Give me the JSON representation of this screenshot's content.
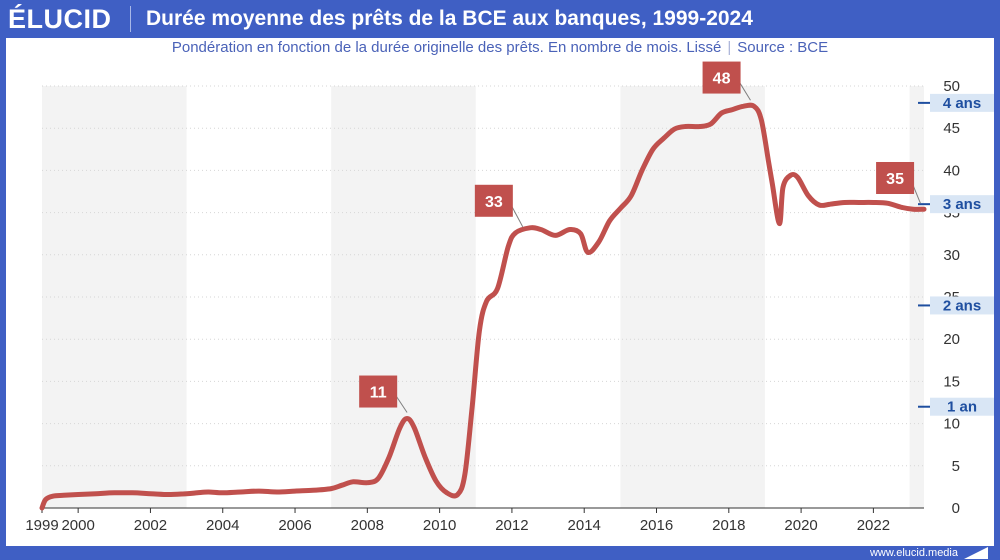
{
  "header": {
    "brand": "ÉLUCID",
    "title": "Durée moyenne des prêts de la BCE aux banques, 1999-2024"
  },
  "subtitle": {
    "text": "Pondération en fonction de la durée originelle des prêts. En nombre de mois. Lissé",
    "source": "Source : BCE"
  },
  "footer": {
    "site": "www.elucid.media"
  },
  "colors": {
    "frame": "#3f5fc4",
    "line": "#c0504d",
    "band": "#f3f3f3",
    "ans_label_bg": "#d9e6f5",
    "ans_label_text": "#1f4fa0"
  },
  "chart_data": {
    "type": "line",
    "title": "Durée moyenne des prêts de la BCE aux banques, 1999-2024",
    "xlabel": "",
    "ylabel": "",
    "xlim": [
      1999,
      2023.4
    ],
    "ylim": [
      0,
      50
    ],
    "x_ticks": [
      1999,
      2000,
      2002,
      2004,
      2006,
      2008,
      2010,
      2012,
      2014,
      2016,
      2018,
      2020,
      2022
    ],
    "y_ticks": [
      0,
      5,
      10,
      15,
      20,
      25,
      30,
      35,
      40,
      45,
      50
    ],
    "shaded_periods": [
      [
        1999,
        2003
      ],
      [
        2007,
        2011
      ],
      [
        2015,
        2019
      ],
      [
        2023,
        2023.4
      ]
    ],
    "series": [
      {
        "name": "Durée moyenne (mois)",
        "points": [
          [
            1999.0,
            0.0
          ],
          [
            1999.1,
            1.0
          ],
          [
            1999.3,
            1.4
          ],
          [
            1999.6,
            1.5
          ],
          [
            2000.0,
            1.6
          ],
          [
            2000.5,
            1.7
          ],
          [
            2001.0,
            1.8
          ],
          [
            2001.5,
            1.8
          ],
          [
            2002.0,
            1.7
          ],
          [
            2002.5,
            1.6
          ],
          [
            2003.0,
            1.7
          ],
          [
            2003.3,
            1.8
          ],
          [
            2003.6,
            1.9
          ],
          [
            2004.0,
            1.8
          ],
          [
            2004.5,
            1.9
          ],
          [
            2005.0,
            2.0
          ],
          [
            2005.5,
            1.9
          ],
          [
            2006.0,
            2.0
          ],
          [
            2006.5,
            2.1
          ],
          [
            2007.0,
            2.3
          ],
          [
            2007.3,
            2.7
          ],
          [
            2007.6,
            3.1
          ],
          [
            2008.0,
            3.0
          ],
          [
            2008.3,
            3.5
          ],
          [
            2008.6,
            6.0
          ],
          [
            2008.9,
            9.5
          ],
          [
            2009.1,
            10.6
          ],
          [
            2009.3,
            9.5
          ],
          [
            2009.6,
            6.0
          ],
          [
            2009.9,
            3.2
          ],
          [
            2010.2,
            1.8
          ],
          [
            2010.5,
            1.6
          ],
          [
            2010.7,
            4.0
          ],
          [
            2010.9,
            12.0
          ],
          [
            2011.1,
            21.0
          ],
          [
            2011.3,
            24.5
          ],
          [
            2011.6,
            26.0
          ],
          [
            2011.9,
            31.0
          ],
          [
            2012.1,
            32.6
          ],
          [
            2012.5,
            33.2
          ],
          [
            2012.8,
            33.0
          ],
          [
            2013.2,
            32.3
          ],
          [
            2013.6,
            33.0
          ],
          [
            2013.9,
            32.5
          ],
          [
            2014.1,
            30.3
          ],
          [
            2014.4,
            31.5
          ],
          [
            2014.7,
            34.0
          ],
          [
            2015.0,
            35.5
          ],
          [
            2015.3,
            37.0
          ],
          [
            2015.6,
            40.0
          ],
          [
            2015.9,
            42.5
          ],
          [
            2016.2,
            43.8
          ],
          [
            2016.5,
            44.9
          ],
          [
            2016.8,
            45.2
          ],
          [
            2017.2,
            45.2
          ],
          [
            2017.5,
            45.5
          ],
          [
            2017.8,
            46.8
          ],
          [
            2018.1,
            47.2
          ],
          [
            2018.4,
            47.6
          ],
          [
            2018.7,
            47.6
          ],
          [
            2018.9,
            46.0
          ],
          [
            2019.1,
            41.0
          ],
          [
            2019.2,
            38.5
          ],
          [
            2019.4,
            33.7
          ],
          [
            2019.5,
            38.0
          ],
          [
            2019.7,
            39.4
          ],
          [
            2019.9,
            39.2
          ],
          [
            2020.2,
            37.0
          ],
          [
            2020.5,
            35.9
          ],
          [
            2020.8,
            36.0
          ],
          [
            2021.2,
            36.2
          ],
          [
            2021.6,
            36.2
          ],
          [
            2022.0,
            36.2
          ],
          [
            2022.4,
            36.1
          ],
          [
            2022.8,
            35.6
          ],
          [
            2023.1,
            35.4
          ],
          [
            2023.4,
            35.4
          ]
        ]
      }
    ],
    "annotations": [
      {
        "text": "11",
        "x": 2009.1,
        "y": 10.6,
        "label_x": 2008.3,
        "label_y": 13.8
      },
      {
        "text": "33",
        "x": 2012.3,
        "y": 32.6,
        "label_x": 2011.5,
        "label_y": 36.4
      },
      {
        "text": "48",
        "x": 2018.6,
        "y": 47.6,
        "label_x": 2017.8,
        "label_y": 51.0
      },
      {
        "text": "35",
        "x": 2023.3,
        "y": 35.4,
        "label_x": 2022.6,
        "label_y": 39.1
      }
    ],
    "year_markers": [
      {
        "label": "4 ans",
        "y": 48
      },
      {
        "label": "3 ans",
        "y": 36
      },
      {
        "label": "2 ans",
        "y": 24
      },
      {
        "label": "1 an",
        "y": 12
      }
    ]
  }
}
